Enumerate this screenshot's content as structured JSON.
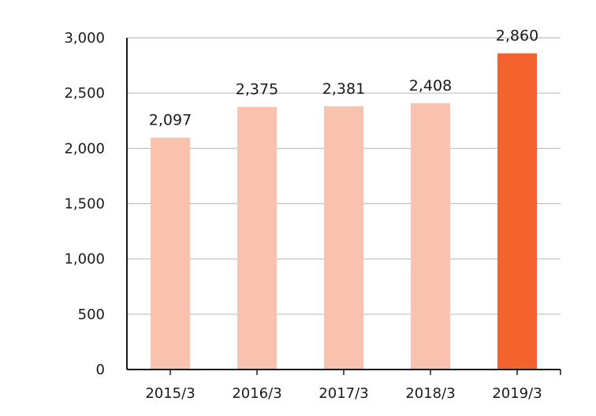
{
  "chart_data": {
    "type": "bar",
    "categories": [
      "2015/3",
      "2016/3",
      "2017/3",
      "2018/3",
      "2019/3"
    ],
    "values": [
      2097,
      2375,
      2381,
      2408,
      2860
    ],
    "value_labels": [
      "2,097",
      "2,375",
      "2,381",
      "2,408",
      "2,860"
    ],
    "y_ticks": [
      0,
      500,
      1000,
      1500,
      2000,
      2500,
      3000
    ],
    "y_tick_labels": [
      "0",
      "500",
      "1,000",
      "1,500",
      "2,000",
      "2,500",
      "3,000"
    ],
    "ylim": [
      0,
      3000
    ],
    "grid": true,
    "title": "",
    "xlabel": "",
    "ylabel": "",
    "colors": {
      "bar": "#f9c2ae",
      "highlight_bar": "#f4622e"
    },
    "highlight_index": 4
  }
}
